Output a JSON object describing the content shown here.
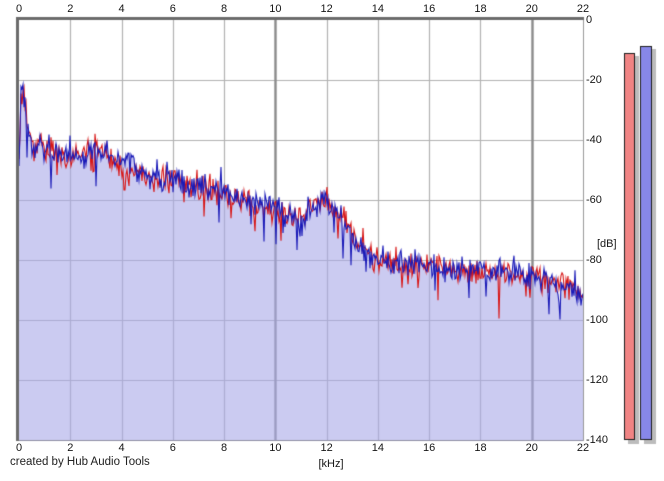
{
  "window": {
    "name": "spectrum-analyzer"
  },
  "footer": {
    "credit": "created by Hub Audio Tools"
  },
  "axes": {
    "x": {
      "unit_label": "[kHz]",
      "min": 0,
      "max": 22,
      "ticks": [
        0,
        2,
        4,
        6,
        8,
        10,
        12,
        14,
        16,
        18,
        20,
        22
      ],
      "major_gridlines": [
        10,
        20
      ]
    },
    "y": {
      "unit_label": "[dB]",
      "min": -140,
      "max": 0,
      "ticks": [
        0,
        -20,
        -40,
        -60,
        -80,
        -100,
        -120,
        -140
      ]
    }
  },
  "meters": {
    "red_db": -11,
    "blue_db": -8.5,
    "red_color": "#f08484",
    "blue_color": "#8787e8",
    "shadow_color": "#bcbcbc",
    "outline_color": "#1c1c1c"
  },
  "colors": {
    "plot_background": "#ffffff",
    "grid_minor": "#b2b2b2",
    "grid_major": "#8b8b8b",
    "border_dark": "#6b6b6b",
    "border_light": "#9a9a9a",
    "fill": "rgba(168,168,232,0.60)",
    "trace_red": "#d81616",
    "trace_blue": "#1a1ab8",
    "text": "#161616"
  },
  "chart_data": {
    "type": "line",
    "title": "",
    "xlabel": "[kHz]",
    "ylabel": "[dB]",
    "xlim": [
      0,
      22
    ],
    "ylim": [
      -140,
      0
    ],
    "grid": true,
    "legend": "none",
    "description": "FFT audio spectrum, two overlaid noisy traces (red and blue channels), blue trace area filled lavender; level decays from about -22 dB near 0.15 kHz to about -93 dB at 22 kHz with a local bump near 12 kHz.",
    "series": [
      {
        "name": "red-trace",
        "color": "#d81616",
        "envelope_khz": [
          0,
          0.08,
          0.15,
          0.3,
          0.5,
          0.65,
          0.8,
          1.0,
          1.3,
          1.6,
          2.0,
          2.5,
          3.0,
          3.5,
          4.0,
          4.5,
          5.0,
          6.0,
          7.0,
          8.0,
          9.0,
          10.0,
          10.8,
          11.3,
          11.8,
          12.3,
          12.8,
          13.2,
          13.8,
          14.5,
          15.5,
          16.5,
          17.5,
          18.5,
          19.5,
          20.5,
          21.3,
          22.0
        ],
        "envelope_db": [
          -48,
          -27,
          -23,
          -33,
          -41,
          -44,
          -36,
          -44,
          -42,
          -45,
          -47,
          -44,
          -41,
          -46,
          -48,
          -50,
          -52,
          -54,
          -56,
          -58,
          -61,
          -64,
          -67,
          -63,
          -59,
          -62,
          -68,
          -74,
          -80,
          -81,
          -82,
          -82,
          -84,
          -84,
          -85,
          -86,
          -88,
          -92
        ],
        "noise_db": 5
      },
      {
        "name": "blue-trace",
        "color": "#1a1ab8",
        "fill_color": "rgba(168,168,232,0.60)",
        "envelope_khz": [
          0,
          0.08,
          0.15,
          0.3,
          0.5,
          0.65,
          0.8,
          1.0,
          1.3,
          1.6,
          2.0,
          2.5,
          3.0,
          3.5,
          4.0,
          4.5,
          5.0,
          6.0,
          7.0,
          8.0,
          9.0,
          10.0,
          10.8,
          11.3,
          11.8,
          12.3,
          12.8,
          13.2,
          13.8,
          14.5,
          15.5,
          16.5,
          17.5,
          18.5,
          19.5,
          20.5,
          21.3,
          22.0
        ],
        "envelope_db": [
          -46,
          -25,
          -22,
          -32,
          -42,
          -45,
          -40,
          -43,
          -43,
          -44,
          -46,
          -46,
          -44,
          -45,
          -47,
          -49,
          -52,
          -53,
          -55,
          -58,
          -60,
          -63,
          -66,
          -64,
          -61,
          -63,
          -69,
          -75,
          -80,
          -81,
          -81,
          -83,
          -83,
          -84,
          -85,
          -86,
          -89,
          -94
        ],
        "noise_db": 5
      }
    ]
  }
}
